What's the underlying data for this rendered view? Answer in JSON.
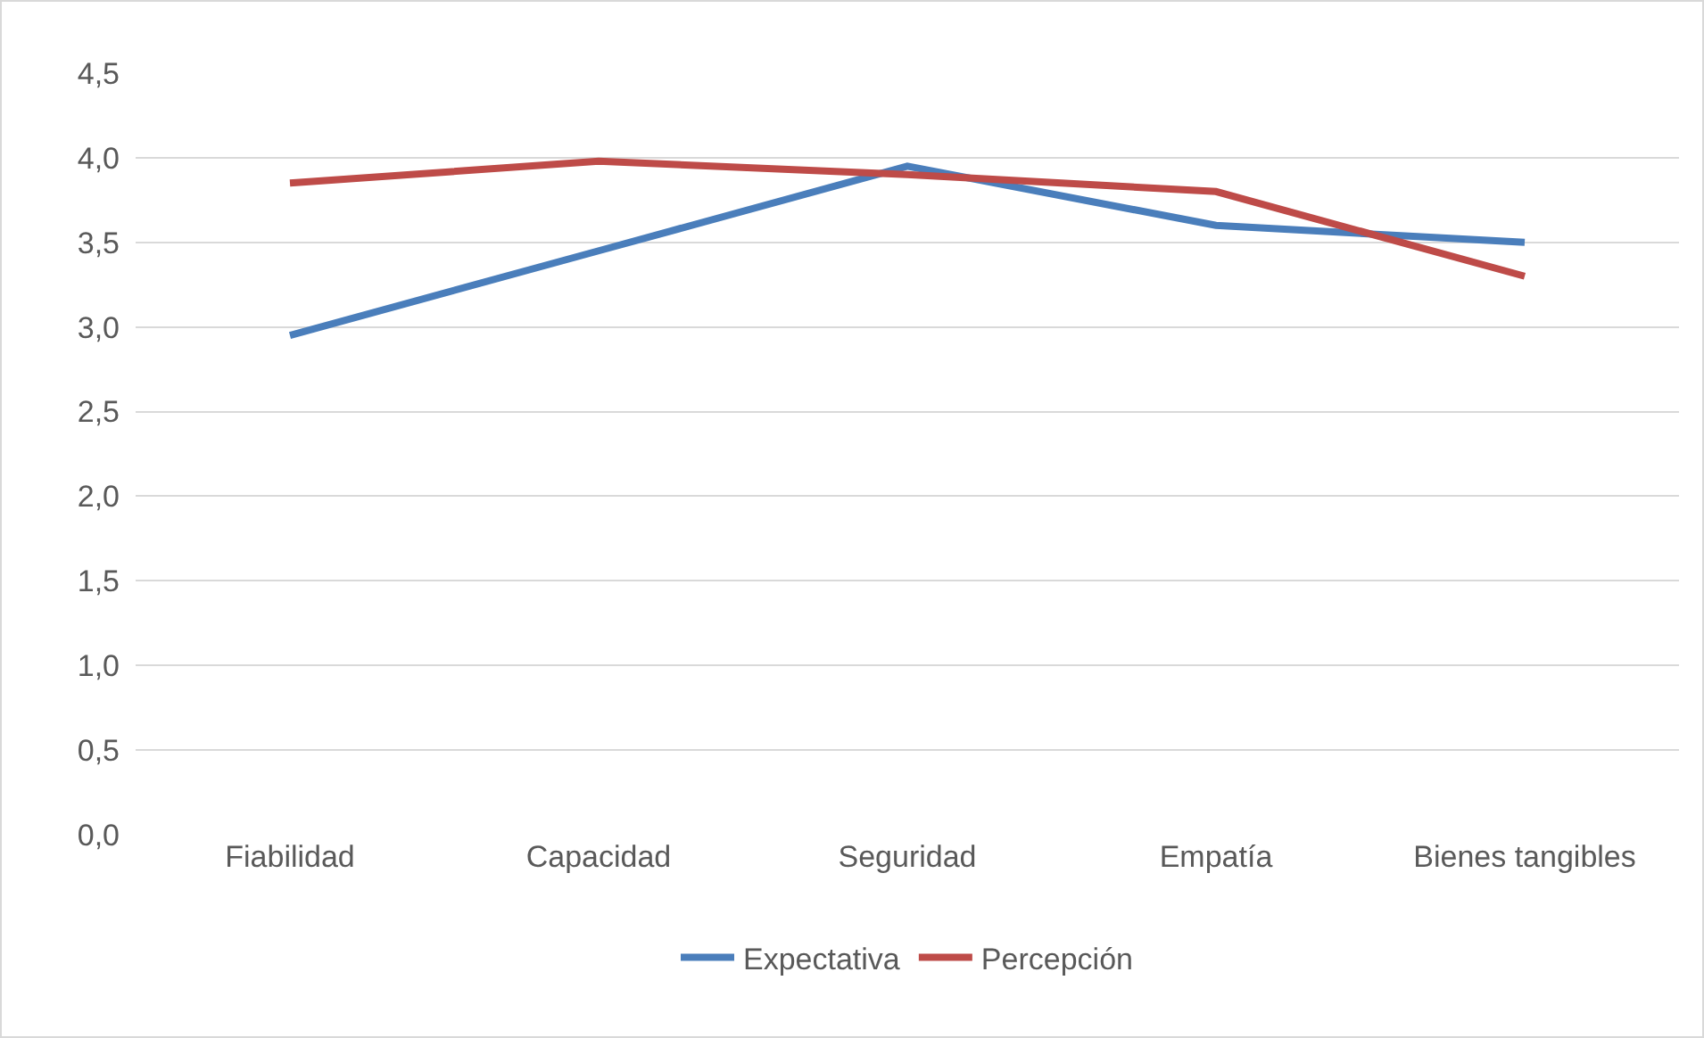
{
  "chart_data": {
    "type": "line",
    "categories": [
      "Fiabilidad",
      "Capacidad",
      "Seguridad",
      "Empatía",
      "Bienes tangibles"
    ],
    "series": [
      {
        "name": "Expectativa",
        "color": "#4a7ebb",
        "values": [
          2.95,
          3.45,
          3.95,
          3.6,
          3.5
        ]
      },
      {
        "name": "Percepción",
        "color": "#be4b48",
        "values": [
          3.85,
          3.98,
          3.9,
          3.8,
          3.3
        ]
      }
    ],
    "ylim": [
      0,
      4.5
    ],
    "yticks": [
      {
        "value": 0,
        "label": "0,0"
      },
      {
        "value": 0.5,
        "label": "0,5"
      },
      {
        "value": 1,
        "label": "1,0"
      },
      {
        "value": 1.5,
        "label": "1,5"
      },
      {
        "value": 2,
        "label": "2,0"
      },
      {
        "value": 2.5,
        "label": "2,5"
      },
      {
        "value": 3,
        "label": "3,0"
      },
      {
        "value": 3.5,
        "label": "3,5"
      },
      {
        "value": 4,
        "label": "4,0"
      },
      {
        "value": 4.5,
        "label": "4,5"
      }
    ],
    "grid": "y",
    "legend": "bottom",
    "marker": "none",
    "line_style": "solid"
  }
}
